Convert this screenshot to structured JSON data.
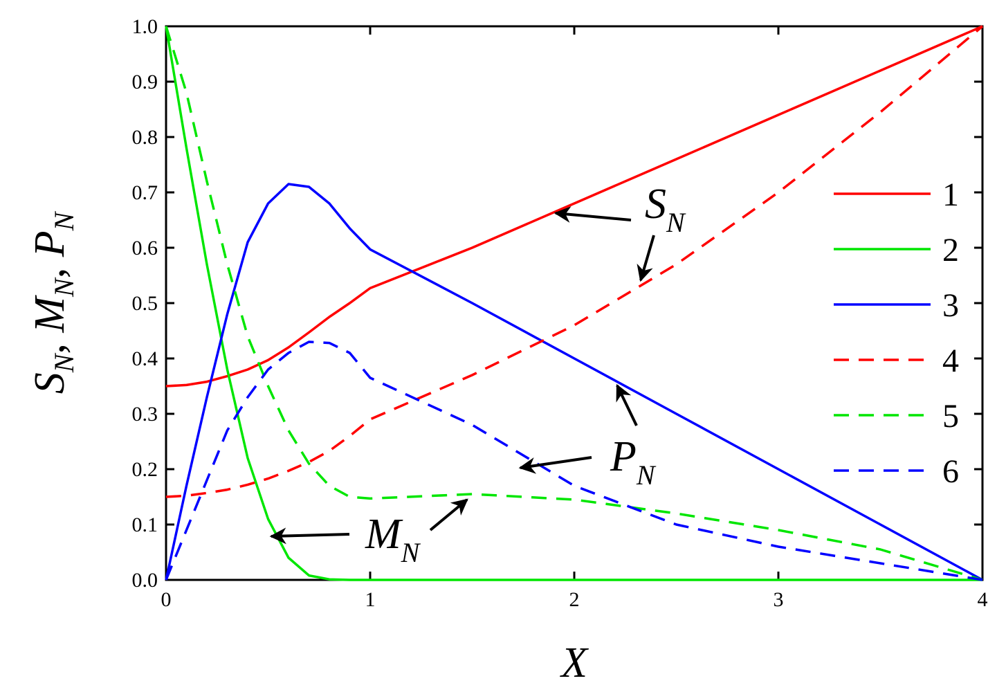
{
  "chart_data": {
    "type": "line",
    "xlabel": "X",
    "ylabel": {
      "parts": [
        {
          "text": "S",
          "subscript": "N"
        },
        {
          "text": "M",
          "subscript": "N"
        },
        {
          "text": "P",
          "subscript": "N"
        }
      ],
      "separator": ","
    },
    "x": [
      0,
      0.1,
      0.2,
      0.3,
      0.4,
      0.5,
      0.6,
      0.7,
      0.8,
      0.9,
      1.0,
      1.5,
      2,
      2.5,
      3,
      3.5,
      4
    ],
    "series": [
      {
        "name": "1",
        "color": "#ff0000",
        "line_style": "solid",
        "values": [
          0.35,
          0.352,
          0.358,
          0.368,
          0.38,
          0.397,
          0.42,
          0.447,
          0.475,
          0.5,
          0.527,
          0.6,
          0.68,
          0.76,
          0.84,
          0.92,
          1.0
        ]
      },
      {
        "name": "2",
        "color": "#00e600",
        "line_style": "solid",
        "values": [
          1.0,
          0.78,
          0.57,
          0.38,
          0.22,
          0.11,
          0.04,
          0.008,
          0.001,
          0,
          0,
          0,
          0,
          0,
          0,
          0,
          0
        ]
      },
      {
        "name": "3",
        "color": "#0000ff",
        "line_style": "solid",
        "values": [
          0,
          0.17,
          0.33,
          0.48,
          0.61,
          0.68,
          0.715,
          0.71,
          0.68,
          0.635,
          0.597,
          0.5,
          0.4,
          0.3,
          0.2,
          0.1,
          0
        ]
      },
      {
        "name": "4",
        "color": "#ff0000",
        "line_style": "dashed",
        "values": [
          0.15,
          0.152,
          0.157,
          0.163,
          0.172,
          0.183,
          0.197,
          0.213,
          0.233,
          0.26,
          0.29,
          0.37,
          0.46,
          0.57,
          0.7,
          0.845,
          1.0
        ]
      },
      {
        "name": "5",
        "color": "#00e600",
        "line_style": "dashed",
        "values": [
          1.0,
          0.88,
          0.72,
          0.57,
          0.44,
          0.35,
          0.27,
          0.21,
          0.17,
          0.15,
          0.147,
          0.155,
          0.145,
          0.12,
          0.09,
          0.055,
          0
        ]
      },
      {
        "name": "6",
        "color": "#0000ff",
        "line_style": "dashed",
        "values": [
          0,
          0.09,
          0.18,
          0.27,
          0.33,
          0.38,
          0.41,
          0.43,
          0.428,
          0.41,
          0.365,
          0.28,
          0.17,
          0.1,
          0.06,
          0.03,
          0
        ]
      }
    ],
    "xlim": [
      0,
      4
    ],
    "xticks": [
      0,
      1,
      2,
      3,
      4
    ],
    "ylim": [
      0,
      1
    ],
    "yticks": [
      {
        "value": 0,
        "label": "0.0"
      },
      0.1,
      0.2,
      0.3,
      0.4,
      0.5,
      0.6,
      0.7,
      0.8,
      0.9,
      {
        "value": 1,
        "label": "1.0"
      }
    ],
    "legend": "right",
    "annotations": [
      {
        "text": "S",
        "subscript": "N"
      },
      {
        "text": "P",
        "subscript": "N"
      },
      {
        "text": "M",
        "subscript": "N"
      }
    ]
  }
}
